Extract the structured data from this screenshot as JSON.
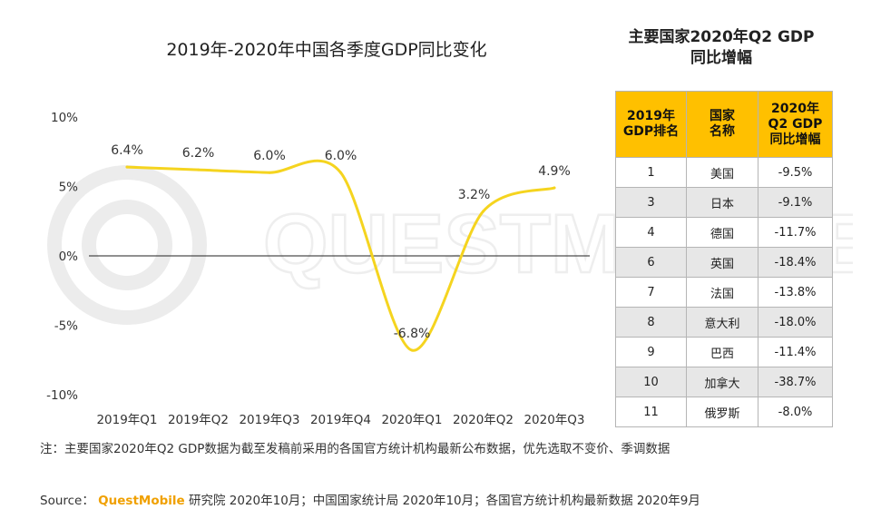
{
  "chart_title": "2019年-2020年中国各季度GDP同比变化",
  "chart_data": {
    "type": "line",
    "title": "2019年-2020年中国各季度GDP同比变化",
    "categories": [
      "2019年Q1",
      "2019年Q2",
      "2019年Q3",
      "2019年Q4",
      "2020年Q1",
      "2020年Q2",
      "2020年Q3"
    ],
    "values": [
      6.4,
      6.2,
      6.0,
      6.0,
      -6.8,
      3.2,
      4.9
    ],
    "data_labels": [
      "6.4%",
      "6.2%",
      "6.0%",
      "6.0%",
      "-6.8%",
      "3.2%",
      "4.9%"
    ],
    "y_ticks": [
      10,
      5,
      0,
      -5,
      -10
    ],
    "y_tick_labels": [
      "10%",
      "5%",
      "0%",
      "-5%",
      "-10%"
    ],
    "ylim": [
      -10,
      10
    ],
    "line_color": "#f5d41f",
    "smooth": true
  },
  "table": {
    "title_line1": "主要国家2020年Q2 GDP",
    "title_line2": "同比增幅",
    "header_color": "#ffc000",
    "headers": [
      [
        "2019年",
        "GDP排名"
      ],
      [
        "国家",
        "名称"
      ],
      [
        "2020年",
        "Q2 GDP",
        "同比增幅"
      ]
    ],
    "rows": [
      {
        "rank": "1",
        "country": "美国",
        "growth": "-9.5%"
      },
      {
        "rank": "3",
        "country": "日本",
        "growth": "-9.1%"
      },
      {
        "rank": "4",
        "country": "德国",
        "growth": "-11.7%"
      },
      {
        "rank": "6",
        "country": "英国",
        "growth": "-18.4%"
      },
      {
        "rank": "7",
        "country": "法国",
        "growth": "-13.8%"
      },
      {
        "rank": "8",
        "country": "意大利",
        "growth": "-18.0%"
      },
      {
        "rank": "9",
        "country": "巴西",
        "growth": "-11.4%"
      },
      {
        "rank": "10",
        "country": "加拿大",
        "growth": "-38.7%"
      },
      {
        "rank": "11",
        "country": "俄罗斯",
        "growth": "-8.0%"
      }
    ]
  },
  "footnote": "注：主要国家2020年Q2 GDP数据为截至发稿前采用的各国官方统计机构最新公布数据，优先选取不变价、季调数据",
  "source": {
    "prefix": "Source：",
    "brand": "QuestMobile",
    "suffix": " 研究院 2020年10月；中国国家统计局 2020年10月；各国官方统计机构最新数据 2020年9月",
    "brand_color": "#f0a000"
  },
  "watermark": "QUESTMOBILE"
}
